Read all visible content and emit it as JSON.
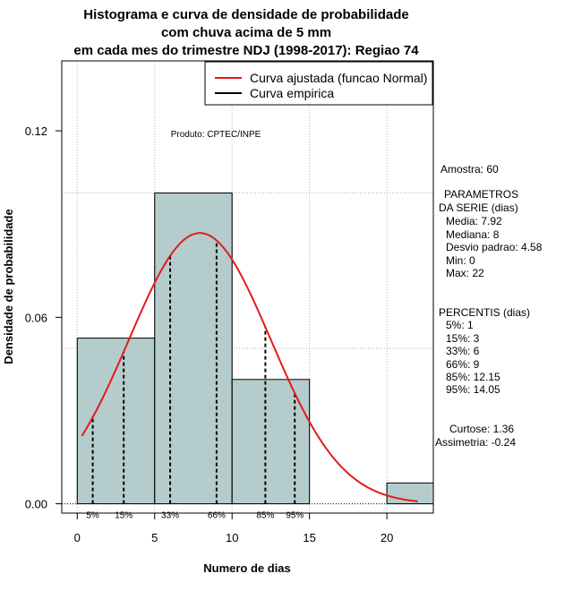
{
  "chart_data": {
    "type": "histogram",
    "title_lines": [
      "Histograma e curva de densidade de probabilidade",
      "com chuva acima de 5 mm",
      "em cada mes do trimestre NDJ (1998-2017): Regiao 74"
    ],
    "xlabel": "Numero de dias",
    "ylabel": "Densidade de probabilidade",
    "xlim": [
      -1,
      23
    ],
    "ylim": [
      -0.003,
      0.1425
    ],
    "x_ticks": [
      0,
      5,
      10,
      15,
      20
    ],
    "x_tick_labels": [
      "0",
      "5",
      "10",
      "15",
      "20"
    ],
    "y_ticks": [
      0.0,
      0.06,
      0.12
    ],
    "y_tick_labels": [
      "0.00",
      "0.06",
      "0.12"
    ],
    "grid_x": [
      0,
      5,
      10,
      15,
      20
    ],
    "grid_y": [
      0.05,
      0.1
    ],
    "bins": [
      {
        "x0": 0,
        "x1": 5,
        "density": 0.0533
      },
      {
        "x0": 5,
        "x1": 10,
        "density": 0.1
      },
      {
        "x0": 10,
        "x1": 15,
        "density": 0.04
      },
      {
        "x0": 15,
        "x1": 20,
        "density": 0.0
      },
      {
        "x0": 20,
        "x1": 23,
        "density": 0.0067
      }
    ],
    "normal_fit": {
      "mean": 7.92,
      "sd": 4.58,
      "x_from": 0.3,
      "x_to": 22,
      "color": "#e41a1c"
    },
    "percentile_lines": [
      {
        "label": "5%",
        "x": 1
      },
      {
        "label": "15%",
        "x": 3
      },
      {
        "label": "33%",
        "x": 6
      },
      {
        "label": "66%",
        "x": 9
      },
      {
        "label": "85%",
        "x": 12.15
      },
      {
        "label": "95%",
        "x": 14.05
      }
    ],
    "legend": {
      "position": "top-right",
      "entries": [
        {
          "label": "Curva ajustada (funcao Normal)",
          "color": "#e41a1c"
        },
        {
          "label": "Curva empirica",
          "color": "#000000"
        }
      ]
    },
    "annotation": "Produto: CPTEC/INPE",
    "colors": {
      "bar_fill": "#b5cccc",
      "curve": "#e41a1c",
      "grid": "#b4b4b4"
    }
  },
  "stats": {
    "amostra": "Amostra: 60",
    "parametros_title_1": "PARAMETROS",
    "parametros_title_2": "DA SERIE (dias)",
    "media": "Media: 7.92",
    "mediana": "Mediana: 8",
    "desvio": "Desvio padrao: 4.58",
    "min": "Min: 0",
    "max": "Max: 22",
    "percentis_title": "PERCENTIS (dias)",
    "p5": "5%: 1",
    "p15": "15%: 3",
    "p33": "33%: 6",
    "p66": "66%: 9",
    "p85": "85%: 12.15",
    "p95": "95%: 14.05",
    "curtose": "Curtose: 1.36",
    "assimetria": "Assimetria: -0.24"
  }
}
